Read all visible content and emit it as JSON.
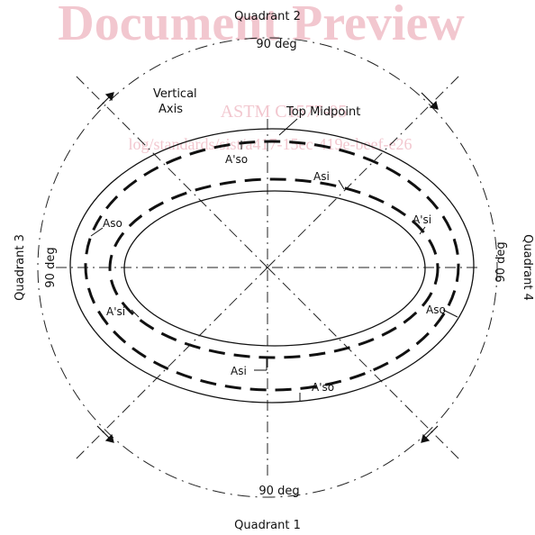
{
  "watermark": {
    "title": "Document Preview",
    "standard": "ASTM C1577-05",
    "url": "log/standards/sist/a417-15ec-419e-beef-e26"
  },
  "quadrants": {
    "q1": "Quadrant 1",
    "q2": "Quadrant 2",
    "q3": "Quadrant 3",
    "q4": "Quadrant 4"
  },
  "angles": {
    "top": "90 deg",
    "bottom": "90 deg",
    "left": "90 deg",
    "right": "90 deg"
  },
  "axis_labels": {
    "vertical_line1": "Vertical",
    "vertical_line2": "Axis",
    "top_midpoint": "Top Midpoint"
  },
  "steel_labels": {
    "aso_top": "A'so",
    "asi_top": "Asi",
    "aso_left": "Aso",
    "asi_right": "A'si",
    "asi_left": "A'si",
    "aso_right": "Aso",
    "asi_bottom": "Asi",
    "aso_bottom": "A'so"
  }
}
